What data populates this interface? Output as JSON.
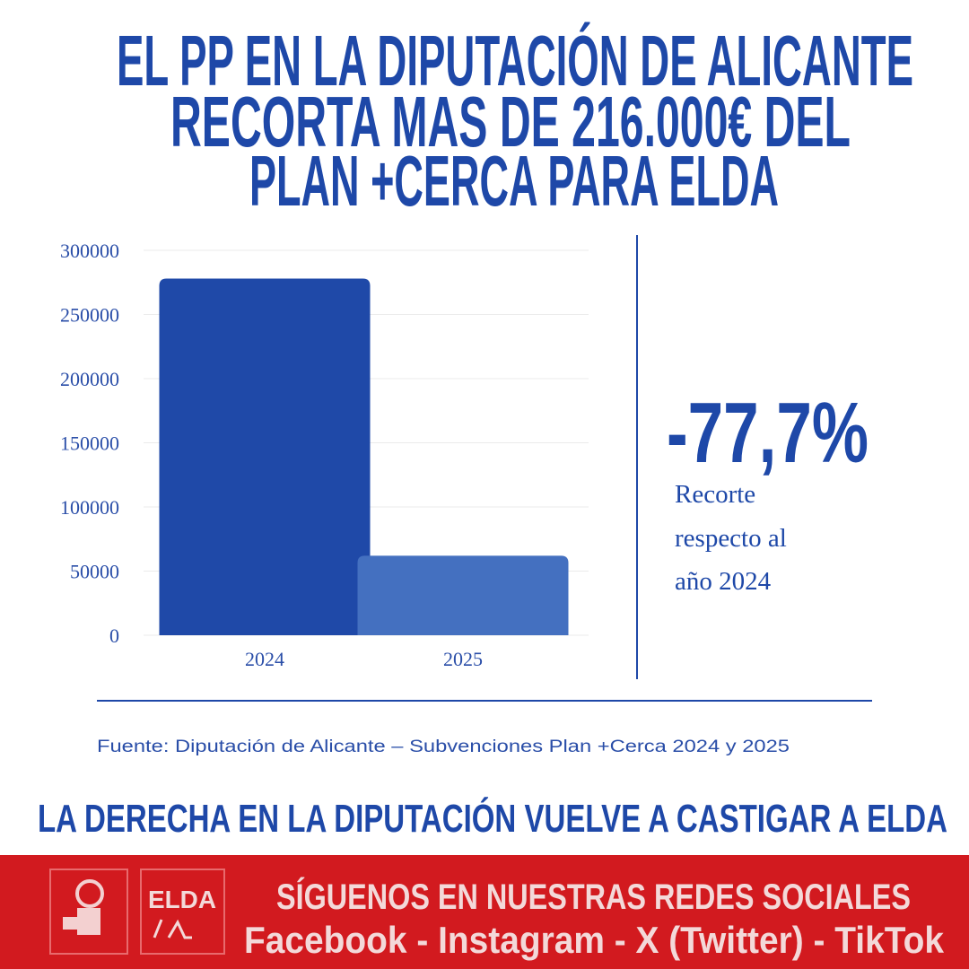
{
  "header": {
    "title_lines": [
      "EL PP EN LA DIPUTACIÓN DE ALICANTE",
      "RECORTA MAS DE 216.000€ DEL",
      "PLAN +CERCA PARA ELDA"
    ]
  },
  "chart_data": {
    "type": "bar",
    "categories": [
      "2024",
      "2025"
    ],
    "values": [
      278000,
      62000
    ],
    "colors": [
      "#1f49a8",
      "#4470c0"
    ],
    "ylim": [
      0,
      300000
    ],
    "yticks": [
      0,
      50000,
      100000,
      150000,
      200000,
      250000,
      300000
    ],
    "grid": true
  },
  "callout": {
    "value": "-77,7%",
    "lines": [
      "Recorte",
      "respecto al",
      "año 2024"
    ]
  },
  "source": "Fuente: Diputación de Alicante – Subvenciones Plan +Cerca 2024 y 2025",
  "slogan": "LA DERECHA EN LA DIPUTACIÓN VUELVE A CASTIGAR A ELDA",
  "footer": {
    "logo_text": "ELDA",
    "lines": [
      "SÍGUENOS EN NUESTRAS REDES SOCIALES",
      "Facebook - Instagram - X (Twitter) - TikTok"
    ]
  }
}
